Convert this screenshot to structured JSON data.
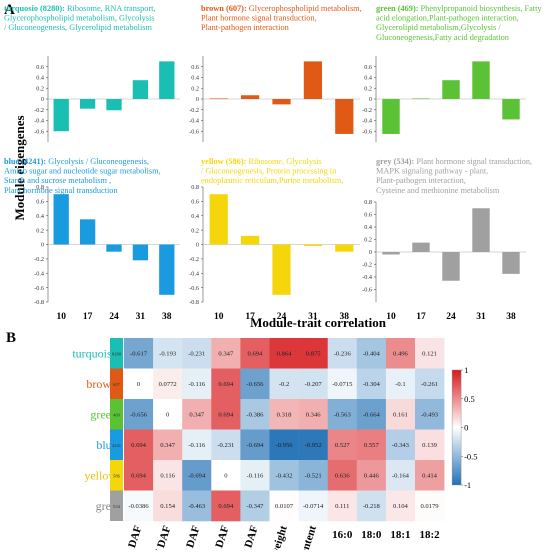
{
  "panel_labels": {
    "a": "A",
    "b": "B"
  },
  "panel_a": {
    "ylabel": "Module eigengenes",
    "x_categories": [
      "10",
      "17",
      "24",
      "31",
      "38"
    ],
    "modules": [
      {
        "name": "turquoise",
        "count": "8280",
        "color": "#1ABFB4",
        "title_bold": "turquosio (8280):",
        "title_lines": [
          " Ribosome, RNA transport,",
          "Glycerophospholipid metabolism, Glycolysis",
          "/ Gluconeogenesis, Glycerolipid metabolism"
        ],
        "ylim": [
          -0.8,
          0.8
        ],
        "ticks": [
          -0.6,
          -0.4,
          -0.2,
          0,
          0.2,
          0.4,
          0.6
        ],
        "tick_labels": [
          "-0.6",
          "-0.4",
          "-0.2",
          "0",
          "0.2",
          "0.4",
          "0.6"
        ],
        "values": [
          -0.6,
          -0.18,
          -0.21,
          0.35,
          0.7
        ]
      },
      {
        "name": "brown",
        "count": "607",
        "color": "#E05A16",
        "title_bold": "brown (607):",
        "title_lines": [
          " Glycerophospholipid metabolism,",
          "Plant hormone signal transduction,",
          "Plant-pathogen interaction"
        ],
        "ylim": [
          -0.8,
          0.8
        ],
        "ticks": [
          -0.6,
          -0.4,
          -0.2,
          0,
          0.2,
          0.4,
          0.6
        ],
        "tick_labels": [
          "-0.6",
          "-0.4",
          "-0.2",
          "0",
          "0.2",
          "0.4",
          "0.6"
        ],
        "values": [
          0.01,
          0.07,
          -0.1,
          0.7,
          -0.65
        ]
      },
      {
        "name": "green",
        "count": "469",
        "color": "#5BC236",
        "title_bold": "green (469):",
        "title_lines": [
          " Phenylpropanoid biosynthesis, Fatty",
          "acid elongation,Plant-pathogen interaction,",
          "Glycerolipid  metabolism,Glycolysis /",
          "Gluconeogenesis,Fatty acid degradation"
        ],
        "ylim": [
          -0.8,
          0.8
        ],
        "ticks": [
          -0.6,
          -0.4,
          -0.2,
          0,
          0.2,
          0.4,
          0.6
        ],
        "tick_labels": [
          "-0.6",
          "-0.4",
          "-0.2",
          "0",
          "0.2",
          "0.4",
          "0.6"
        ],
        "values": [
          -0.65,
          0.01,
          0.35,
          0.7,
          -0.38
        ]
      },
      {
        "name": "blue",
        "count": "4241",
        "color": "#1A9BE0",
        "title_bold": "blue (4241):",
        "title_lines": [
          " Glycolysis / Gluconeogenesis,",
          "Amino sugar and nucleotide sugar metabolism,",
          "Starch and sucrose metabolism ,",
          "Plant hormone signal transduction"
        ],
        "ylim": [
          -0.8,
          0.8
        ],
        "ticks": [
          -0.8,
          -0.6,
          -0.4,
          -0.2,
          0,
          0.2,
          0.4,
          0.6,
          0.8
        ],
        "tick_labels": [
          "-0.8",
          "-0.6",
          "-0.4",
          "-0.2",
          "0",
          "0.2",
          "0.4",
          "0.6",
          "0.8"
        ],
        "values": [
          0.7,
          0.35,
          -0.1,
          -0.22,
          -0.7
        ]
      },
      {
        "name": "yellow",
        "count": "586",
        "color": "#F5D60A",
        "title_bold": "yellow (586):",
        "title_lines": [
          " Ribosome, Glycolysis",
          "/ Gluconeogenesis, Protein processing in",
          "endoplasmic reticulum,Purine metabolism,"
        ],
        "ylim": [
          -0.8,
          0.8
        ],
        "ticks": [
          -0.8,
          -0.6,
          -0.4,
          -0.2,
          0,
          0.2,
          0.4,
          0.6,
          0.8
        ],
        "tick_labels": [
          "-0.8",
          "-0.6",
          "-0.4",
          "-0.2",
          "0",
          "0.2",
          "0.4",
          "0.6",
          "0.8"
        ],
        "values": [
          0.7,
          0.12,
          -0.7,
          -0.02,
          -0.1
        ]
      },
      {
        "name": "grey",
        "count": "534",
        "color": "#A0A0A0",
        "title_bold": "grey (534):",
        "title_lines": [
          " Plant hormone signal transduction,",
          "MAPK signaling pathway - plant,",
          "Plant-pathogen interaction,",
          "Cysteine and methionine metabolism"
        ],
        "ylim": [
          -0.8,
          0.8
        ],
        "ticks": [
          -0.6,
          -0.4,
          -0.2,
          0,
          0.2,
          0.4,
          0.6,
          0.8
        ],
        "tick_labels": [
          "-0.6",
          "-0.4",
          "-0.2",
          "0",
          "0.2",
          "0.4",
          "0.6",
          "0.8"
        ],
        "values": [
          -0.04,
          0.15,
          -0.46,
          0.7,
          -0.35
        ]
      }
    ]
  },
  "chart_data": [
    {
      "type": "bar",
      "panel": "A",
      "ylabel": "Module eigengenes",
      "categories": [
        "10",
        "17",
        "24",
        "31",
        "38"
      ],
      "series": [
        {
          "name": "turquoise",
          "values": [
            -0.6,
            -0.18,
            -0.21,
            0.35,
            0.7
          ]
        },
        {
          "name": "brown",
          "values": [
            0.01,
            0.07,
            -0.1,
            0.7,
            -0.65
          ]
        },
        {
          "name": "green",
          "values": [
            -0.65,
            0.01,
            0.35,
            0.7,
            -0.38
          ]
        },
        {
          "name": "blue",
          "values": [
            0.7,
            0.35,
            -0.1,
            -0.22,
            -0.7
          ]
        },
        {
          "name": "yellow",
          "values": [
            0.7,
            0.12,
            -0.7,
            -0.02,
            -0.1
          ]
        },
        {
          "name": "grey",
          "values": [
            -0.04,
            0.15,
            -0.46,
            0.7,
            -0.35
          ]
        }
      ]
    },
    {
      "type": "heatmap",
      "panel": "B",
      "title": "Module-trait correlation",
      "rows": [
        {
          "name": "turquoise",
          "count": "8280",
          "color": "#1ABFB4",
          "label_color": "#1ABFB4"
        },
        {
          "name": "brown",
          "count": "607",
          "color": "#E05A16",
          "label_color": "#E05A16"
        },
        {
          "name": "green",
          "count": "469",
          "color": "#5BC236",
          "label_color": "#5BC236"
        },
        {
          "name": "blue",
          "count": "4241",
          "color": "#1A9BE0",
          "label_color": "#1A9BE0"
        },
        {
          "name": "yellow",
          "count": "586",
          "color": "#F5D60A",
          "label_color": "#E8C20A"
        },
        {
          "name": "grey",
          "count": "534",
          "color": "#A0A0A0",
          "label_color": "#888888"
        }
      ],
      "columns": [
        "10 DAF",
        "17 DAF",
        "24 DAF",
        "31 DAF",
        "38 DAF",
        "seed weight",
        "oil content",
        "16:0",
        "18:0",
        "18:1",
        "18:2"
      ],
      "rotated_columns": 7,
      "values": [
        [
          -0.617,
          -0.193,
          -0.231,
          0.347,
          0.694,
          0.864,
          0.875,
          -0.236,
          -0.404,
          0.496,
          0.121
        ],
        [
          0,
          0.0772,
          -0.116,
          0.694,
          -0.656,
          -0.2,
          -0.207,
          -0.0715,
          -0.304,
          -0.1,
          -0.261
        ],
        [
          -0.656,
          0,
          0.347,
          0.694,
          -0.386,
          0.318,
          0.346,
          -0.563,
          -0.664,
          0.161,
          -0.493
        ],
        [
          0.694,
          0.347,
          -0.116,
          -0.231,
          -0.694,
          -0.956,
          -0.952,
          0.527,
          0.557,
          -0.343,
          0.139
        ],
        [
          0.694,
          0.116,
          -0.694,
          0,
          -0.116,
          -0.432,
          -0.521,
          0.636,
          0.446,
          -0.164,
          0.414
        ],
        [
          -0.0386,
          0.154,
          -0.463,
          0.694,
          -0.347,
          0.0107,
          -0.0714,
          0.111,
          -0.218,
          0.104,
          0.0179
        ]
      ],
      "value_labels": [
        [
          "-0.617",
          "-0.193",
          "-0.231",
          "0.347",
          "0.694",
          "0.864",
          "0.875",
          "-0.236",
          "-0.404",
          "0.496",
          "0.121"
        ],
        [
          "0",
          "0.0772",
          "-0.116",
          "0.694",
          "-0.656",
          "-0.2",
          "-0.207",
          "-0.0715",
          "-0.304",
          "-0.1",
          "-0.261"
        ],
        [
          "-0.656",
          "0",
          "0.347",
          "0.694",
          "-0.386",
          "0.318",
          "0.346",
          "-0.563",
          "-0.664",
          "0.161",
          "-0.493"
        ],
        [
          "0.694",
          "0.347",
          "-0.116",
          "-0.231",
          "-0.694",
          "-0.956",
          "-0.952",
          "0.527",
          "0.557",
          "-0.343",
          "0.139"
        ],
        [
          "0.694",
          "0.116",
          "-0.694",
          "0",
          "-0.116",
          "-0.432",
          "-0.521",
          "0.636",
          "0.446",
          "-0.164",
          "0.414"
        ],
        [
          "-0.0386",
          "0.154",
          "-0.463",
          "0.694",
          "-0.347",
          "0.0107",
          "-0.0714",
          "0.111",
          "-0.218",
          "0.104",
          "0.0179"
        ]
      ],
      "colorbar": {
        "ticks": [
          1,
          0.5,
          0,
          -0.5,
          -1
        ],
        "tick_labels": [
          "1",
          "0.5",
          "0",
          "-0.5",
          "-1"
        ],
        "colors": {
          "high": "#D7191C",
          "mid": "#FFFFFF",
          "low": "#2171B5"
        }
      }
    }
  ]
}
